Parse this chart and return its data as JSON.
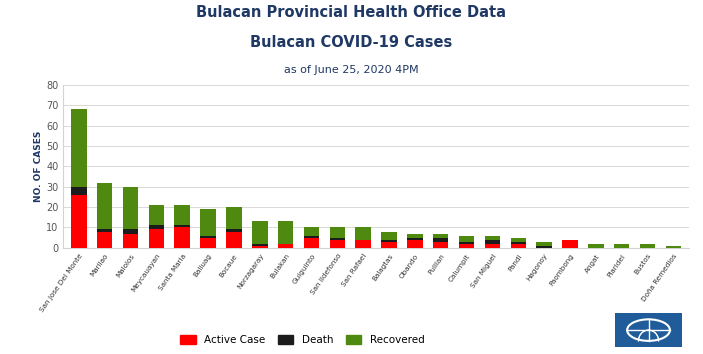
{
  "title1": "Bulacan Provincial Health Office Data",
  "title2": "Bulacan COVID-19 Cases",
  "subtitle": "as of June 25, 2020 4PM",
  "ylabel": "NO. OF CASES",
  "categories": [
    "San Jose Del Monte",
    "Marilao",
    "Malolos",
    "Meycauayan",
    "Santa Maria",
    "Baliuag",
    "Bocaue",
    "Norzagaray",
    "Bulakan",
    "Guiguinto",
    "San Ildefonso",
    "San Rafael",
    "Balagtas",
    "Obando",
    "Pulilan",
    "Calumpit",
    "San Miguel",
    "Pandi",
    "Hagonoy",
    "Paombong",
    "Angat",
    "Plaridel",
    "Bustos",
    "Doña Remedios"
  ],
  "active": [
    26,
    8,
    7,
    9,
    10,
    5,
    8,
    1,
    2,
    5,
    4,
    4,
    3,
    4,
    3,
    2,
    2,
    2,
    0,
    4,
    0,
    0,
    0,
    0
  ],
  "death": [
    4,
    1,
    2,
    2,
    1,
    1,
    1,
    1,
    0,
    1,
    1,
    0,
    1,
    1,
    2,
    1,
    2,
    1,
    1,
    0,
    0,
    0,
    0,
    0
  ],
  "recovered": [
    38,
    23,
    21,
    10,
    10,
    13,
    11,
    11,
    11,
    4,
    5,
    6,
    4,
    2,
    2,
    3,
    2,
    2,
    2,
    0,
    2,
    2,
    2,
    1
  ],
  "color_active": "#FF0000",
  "color_death": "#1C1C1C",
  "color_recovered": "#4F8A10",
  "ylim": [
    0,
    80
  ],
  "yticks": [
    0,
    10,
    20,
    30,
    40,
    50,
    60,
    70,
    80
  ],
  "grid_color": "#D3D3D3",
  "title_color": "#1F3864",
  "bg_color": "#FFFFFF",
  "logo_color": "#1F5C99",
  "bar_width": 0.6
}
